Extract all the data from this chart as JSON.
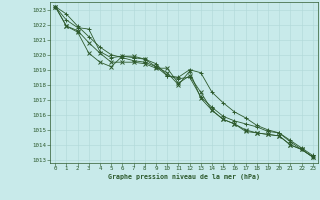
{
  "title": "Graphe pression niveau de la mer (hPa)",
  "background_color": "#c8eaea",
  "grid_color": "#b0d8d8",
  "line_color": "#2d5a2d",
  "xlim": [
    -0.5,
    23.5
  ],
  "ylim": [
    1012.8,
    1023.5
  ],
  "yticks": [
    1013,
    1014,
    1015,
    1016,
    1017,
    1018,
    1019,
    1020,
    1021,
    1022,
    1023
  ],
  "xticks": [
    0,
    1,
    2,
    3,
    4,
    5,
    6,
    7,
    8,
    9,
    10,
    11,
    12,
    13,
    14,
    15,
    16,
    17,
    18,
    19,
    20,
    21,
    22,
    23
  ],
  "series": [
    [
      1023.2,
      1022.7,
      1021.9,
      1021.2,
      1020.5,
      1020.0,
      1019.8,
      1019.6,
      1019.5,
      1019.2,
      1018.6,
      1018.5,
      1019.0,
      1018.8,
      1017.5,
      1016.8,
      1016.2,
      1015.8,
      1015.3,
      1015.0,
      1014.8,
      1014.3,
      1013.8,
      1013.3
    ],
    [
      1023.2,
      1022.3,
      1021.8,
      1021.7,
      1020.2,
      1019.8,
      1019.9,
      1019.8,
      1019.7,
      1019.4,
      1018.6,
      1018.4,
      1018.5,
      1017.2,
      1016.5,
      1015.9,
      1015.6,
      1015.4,
      1015.2,
      1014.9,
      1014.8,
      1014.2,
      1013.7,
      1013.2
    ],
    [
      1023.2,
      1021.9,
      1021.6,
      1020.8,
      1020.1,
      1019.5,
      1019.5,
      1019.5,
      1019.4,
      1019.1,
      1019.1,
      1018.1,
      1018.6,
      1017.5,
      1016.3,
      1015.7,
      1015.4,
      1015.0,
      1014.8,
      1014.7,
      1014.6,
      1014.0,
      1013.7,
      1013.2
    ],
    [
      1023.2,
      1021.9,
      1021.5,
      1020.1,
      1019.5,
      1019.2,
      1019.9,
      1019.9,
      1019.7,
      1019.2,
      1018.8,
      1018.0,
      1018.9,
      1017.1,
      1016.3,
      1015.7,
      1015.4,
      1014.9,
      1014.8,
      1014.7,
      1014.6,
      1014.0,
      1013.7,
      1013.2
    ]
  ]
}
